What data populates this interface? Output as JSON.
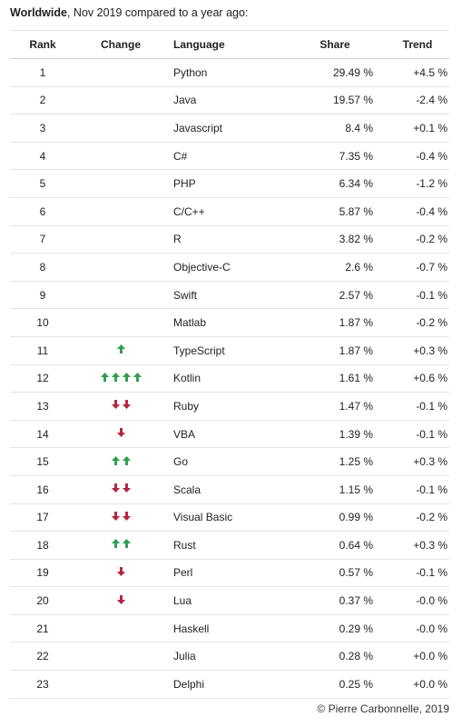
{
  "heading": {
    "bold": "Worldwide",
    "rest": ", Nov 2019 compared to a year ago:"
  },
  "columns": {
    "rank": "Rank",
    "change": "Change",
    "language": "Language",
    "share": "Share",
    "trend": "Trend"
  },
  "colors": {
    "up": "#2e9e4e",
    "down": "#b3243f"
  },
  "rows": [
    {
      "rank": "1",
      "change": {
        "dir": "none",
        "count": 0
      },
      "language": "Python",
      "share": "29.49 %",
      "trend": "+4.5 %"
    },
    {
      "rank": "2",
      "change": {
        "dir": "none",
        "count": 0
      },
      "language": "Java",
      "share": "19.57 %",
      "trend": "-2.4 %"
    },
    {
      "rank": "3",
      "change": {
        "dir": "none",
        "count": 0
      },
      "language": "Javascript",
      "share": "8.4 %",
      "trend": "+0.1 %"
    },
    {
      "rank": "4",
      "change": {
        "dir": "none",
        "count": 0
      },
      "language": "C#",
      "share": "7.35 %",
      "trend": "-0.4 %"
    },
    {
      "rank": "5",
      "change": {
        "dir": "none",
        "count": 0
      },
      "language": "PHP",
      "share": "6.34 %",
      "trend": "-1.2 %"
    },
    {
      "rank": "6",
      "change": {
        "dir": "none",
        "count": 0
      },
      "language": "C/C++",
      "share": "5.87 %",
      "trend": "-0.4 %"
    },
    {
      "rank": "7",
      "change": {
        "dir": "none",
        "count": 0
      },
      "language": "R",
      "share": "3.82 %",
      "trend": "-0.2 %"
    },
    {
      "rank": "8",
      "change": {
        "dir": "none",
        "count": 0
      },
      "language": "Objective-C",
      "share": "2.6 %",
      "trend": "-0.7 %"
    },
    {
      "rank": "9",
      "change": {
        "dir": "none",
        "count": 0
      },
      "language": "Swift",
      "share": "2.57 %",
      "trend": "-0.1 %"
    },
    {
      "rank": "10",
      "change": {
        "dir": "none",
        "count": 0
      },
      "language": "Matlab",
      "share": "1.87 %",
      "trend": "-0.2 %"
    },
    {
      "rank": "11",
      "change": {
        "dir": "up",
        "count": 1
      },
      "language": "TypeScript",
      "share": "1.87 %",
      "trend": "+0.3 %"
    },
    {
      "rank": "12",
      "change": {
        "dir": "up",
        "count": 4
      },
      "language": "Kotlin",
      "share": "1.61 %",
      "trend": "+0.6 %"
    },
    {
      "rank": "13",
      "change": {
        "dir": "down",
        "count": 2
      },
      "language": "Ruby",
      "share": "1.47 %",
      "trend": "-0.1 %"
    },
    {
      "rank": "14",
      "change": {
        "dir": "down",
        "count": 1
      },
      "language": "VBA",
      "share": "1.39 %",
      "trend": "-0.1 %"
    },
    {
      "rank": "15",
      "change": {
        "dir": "up",
        "count": 2
      },
      "language": "Go",
      "share": "1.25 %",
      "trend": "+0.3 %"
    },
    {
      "rank": "16",
      "change": {
        "dir": "down",
        "count": 2
      },
      "language": "Scala",
      "share": "1.15 %",
      "trend": "-0.1 %"
    },
    {
      "rank": "17",
      "change": {
        "dir": "down",
        "count": 2
      },
      "language": "Visual Basic",
      "share": "0.99 %",
      "trend": "-0.2 %"
    },
    {
      "rank": "18",
      "change": {
        "dir": "up",
        "count": 2
      },
      "language": "Rust",
      "share": "0.64 %",
      "trend": "+0.3 %"
    },
    {
      "rank": "19",
      "change": {
        "dir": "down",
        "count": 1
      },
      "language": "Perl",
      "share": "0.57 %",
      "trend": "-0.1 %"
    },
    {
      "rank": "20",
      "change": {
        "dir": "down",
        "count": 1
      },
      "language": "Lua",
      "share": "0.37 %",
      "trend": "-0.0 %"
    },
    {
      "rank": "21",
      "change": {
        "dir": "none",
        "count": 0
      },
      "language": "Haskell",
      "share": "0.29 %",
      "trend": "-0.0 %"
    },
    {
      "rank": "22",
      "change": {
        "dir": "none",
        "count": 0
      },
      "language": "Julia",
      "share": "0.28 %",
      "trend": "+0.0 %"
    },
    {
      "rank": "23",
      "change": {
        "dir": "none",
        "count": 0
      },
      "language": "Delphi",
      "share": "0.25 %",
      "trend": "+0.0 %"
    }
  ],
  "footer": "© Pierre Carbonnelle, 2019"
}
